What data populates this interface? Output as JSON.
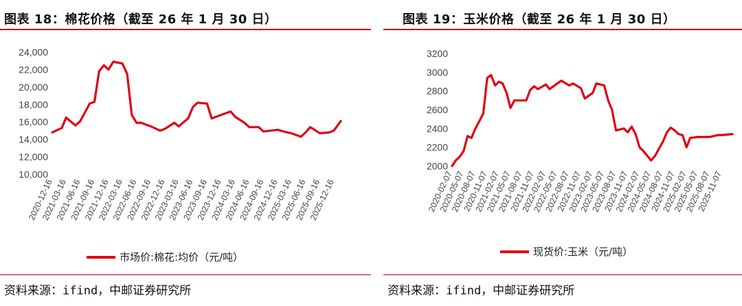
{
  "chart_data": [
    {
      "type": "line",
      "title": "图表 18：棉花价格（截至 26 年 1 月 30 日）",
      "source": "资料来源：ifind，中邮证券研究所",
      "series": [
        {
          "name": "市场价:棉花:均价（元/吨）",
          "color": "#e00012",
          "x": [
            "2020-12-16",
            "2021-02-16",
            "2021-03-16",
            "2021-05-16",
            "2021-06-16",
            "2021-08-16",
            "2021-09-16",
            "2021-10-16",
            "2021-11-16",
            "2021-12-16",
            "2022-01-16",
            "2022-03-16",
            "2022-04-16",
            "2022-05-16",
            "2022-06-16",
            "2022-07-16",
            "2022-09-16",
            "2022-11-16",
            "2022-12-16",
            "2023-02-16",
            "2023-03-16",
            "2023-05-16",
            "2023-06-16",
            "2023-07-16",
            "2023-09-16",
            "2023-10-16",
            "2023-12-16",
            "2024-02-16",
            "2024-03-16",
            "2024-05-16",
            "2024-06-16",
            "2024-08-16",
            "2024-09-16",
            "2024-12-16",
            "2025-02-16",
            "2025-03-16",
            "2025-05-16",
            "2025-06-16",
            "2025-07-16",
            "2025-09-16",
            "2025-11-16",
            "2025-12-16",
            "2026-01-30"
          ],
          "values": [
            14800,
            15300,
            16500,
            15600,
            16100,
            18100,
            18300,
            21800,
            22500,
            22000,
            22900,
            22700,
            21500,
            16800,
            15900,
            15900,
            15500,
            15000,
            15200,
            15900,
            15500,
            16400,
            17700,
            18200,
            18100,
            16400,
            16800,
            17200,
            16600,
            15900,
            15400,
            15400,
            14900,
            15100,
            14800,
            14700,
            14300,
            14800,
            15400,
            14700,
            14800,
            15000,
            16100
          ]
        }
      ],
      "xlabels": [
        "2020-12-16",
        "2021-03-16",
        "2021-06-16",
        "2021-09-16",
        "2021-12-16",
        "2022-03-16",
        "2022-06-16",
        "2022-09-16",
        "2022-12-16",
        "2023-03-16",
        "2023-06-16",
        "2023-09-16",
        "2023-12-16",
        "2024-03-16",
        "2024-06-16",
        "2024-09-16",
        "2024-12-16",
        "2025-03-16",
        "2025-06-16",
        "2025-09-16",
        "2025-12-16"
      ],
      "xlabel_start": "2020-12-16",
      "xlabel_end": "2025-12-16",
      "x_end": "2026-01-30",
      "ylim": [
        10000,
        24000
      ],
      "yticks": [
        10000,
        12000,
        14000,
        16000,
        18000,
        20000,
        22000,
        24000
      ],
      "ytick_labels": [
        "10,000",
        "12,000",
        "14,000",
        "16,000",
        "18,000",
        "20,000",
        "22,000",
        "24,000"
      ],
      "legend_position": "bottom",
      "grid": false
    },
    {
      "type": "line",
      "title": "图表 19：玉米价格（截至 26 年 1 月 30 日）",
      "source": "资料来源：ifind，中邮证券研究所",
      "series": [
        {
          "name": "现货价:玉米（元/吨）",
          "color": "#e00012",
          "x": [
            "2020-02-07",
            "2020-03-07",
            "2020-04-07",
            "2020-05-07",
            "2020-06-07",
            "2020-07-07",
            "2020-08-07",
            "2020-09-07",
            "2020-10-07",
            "2020-11-07",
            "2020-12-07",
            "2021-01-07",
            "2021-02-07",
            "2021-03-07",
            "2021-04-07",
            "2021-05-07",
            "2021-06-07",
            "2021-08-07",
            "2021-09-07",
            "2021-10-07",
            "2021-11-07",
            "2021-12-07",
            "2022-02-07",
            "2022-03-07",
            "2022-05-07",
            "2022-06-07",
            "2022-08-07",
            "2022-09-07",
            "2022-11-07",
            "2022-12-07",
            "2023-02-07",
            "2023-03-07",
            "2023-05-07",
            "2023-06-07",
            "2023-07-07",
            "2023-08-07",
            "2023-09-07",
            "2023-10-07",
            "2023-11-07",
            "2023-12-07",
            "2024-01-07",
            "2024-02-07",
            "2024-03-07",
            "2024-05-07",
            "2024-06-07",
            "2024-08-07",
            "2024-09-07",
            "2024-10-07",
            "2024-11-07",
            "2024-12-07",
            "2025-01-07",
            "2025-02-07",
            "2025-03-07",
            "2025-05-07",
            "2025-06-07",
            "2025-08-07",
            "2025-09-07",
            "2025-10-07",
            "2025-11-07",
            "2026-01-30"
          ],
          "values": [
            2000,
            2060,
            2100,
            2160,
            2320,
            2300,
            2400,
            2480,
            2560,
            2940,
            2970,
            2860,
            2900,
            2880,
            2780,
            2620,
            2700,
            2700,
            2700,
            2810,
            2850,
            2820,
            2870,
            2820,
            2880,
            2910,
            2860,
            2880,
            2830,
            2720,
            2780,
            2880,
            2860,
            2700,
            2600,
            2380,
            2390,
            2400,
            2360,
            2420,
            2340,
            2200,
            2160,
            2060,
            2110,
            2260,
            2360,
            2410,
            2380,
            2340,
            2330,
            2200,
            2300,
            2310,
            2310,
            2310,
            2320,
            2330,
            2330,
            2340
          ]
        }
      ],
      "xlabels": [
        "2020-02-07",
        "2020-05-07",
        "2020-08-07",
        "2020-11-07",
        "2021-02-07",
        "2021-05-07",
        "2021-08-07",
        "2021-11-07",
        "2022-02-07",
        "2022-05-07",
        "2022-08-07",
        "2022-11-07",
        "2023-02-07",
        "2023-05-07",
        "2023-08-07",
        "2023-11-07",
        "2024-02-07",
        "2024-05-07",
        "2024-08-07",
        "2024-11-07",
        "2025-02-07",
        "2025-05-07",
        "2025-08-07",
        "2025-11-07"
      ],
      "xlabel_start": "2020-02-07",
      "xlabel_end": "2025-11-07",
      "x_end": "2026-01-30",
      "ylim": [
        2000,
        3200
      ],
      "yticks": [
        2000,
        2200,
        2400,
        2600,
        2800,
        3000,
        3200
      ],
      "ytick_labels": [
        "2000",
        "2200",
        "2400",
        "2600",
        "2800",
        "3000",
        "3200"
      ],
      "legend_position": "bottom",
      "grid": false
    }
  ]
}
